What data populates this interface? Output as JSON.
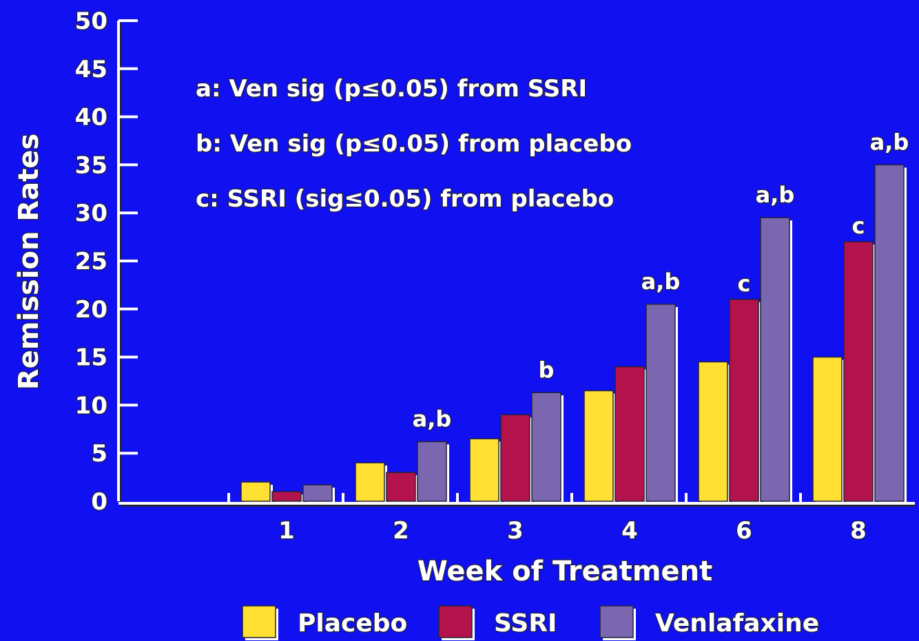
{
  "colors": {
    "background": "#1010f0",
    "placebo": "#ffe033",
    "ssri": "#b3124a",
    "venlafaxine": "#7b67b0"
  },
  "chart_data": {
    "type": "bar",
    "title": "",
    "xlabel": "Week of Treatment",
    "ylabel": "Remission Rates",
    "ylim": [
      0,
      50
    ],
    "yticks": [
      "0",
      "5",
      "10",
      "15",
      "20",
      "25",
      "30",
      "35",
      "40",
      "45",
      "50"
    ],
    "categories": [
      "1",
      "2",
      "3",
      "4",
      "6",
      "8"
    ],
    "series": [
      {
        "name": "Placebo",
        "color": "#ffe033",
        "values": [
          2,
          4,
          6.5,
          11.5,
          14.5,
          15
        ]
      },
      {
        "name": "SSRI",
        "color": "#b3124a",
        "values": [
          1,
          3,
          9,
          14,
          21,
          27
        ]
      },
      {
        "name": "Venlafaxine",
        "color": "#7b67b0",
        "values": [
          1.7,
          6.2,
          11.3,
          20.5,
          29.5,
          35
        ]
      }
    ],
    "bar_labels": [
      "",
      "a,b",
      "b",
      "a,b",
      "a,b",
      "a,b"
    ],
    "ssri_labels": [
      "",
      "",
      "",
      "",
      "c",
      "c"
    ],
    "annotations": [
      "a: Ven sig (p≤0.05) from SSRI",
      "b: Ven sig (p≤0.05) from placebo",
      "c: SSRI (sig≤0.05) from placebo"
    ],
    "legend_position": "bottom"
  }
}
